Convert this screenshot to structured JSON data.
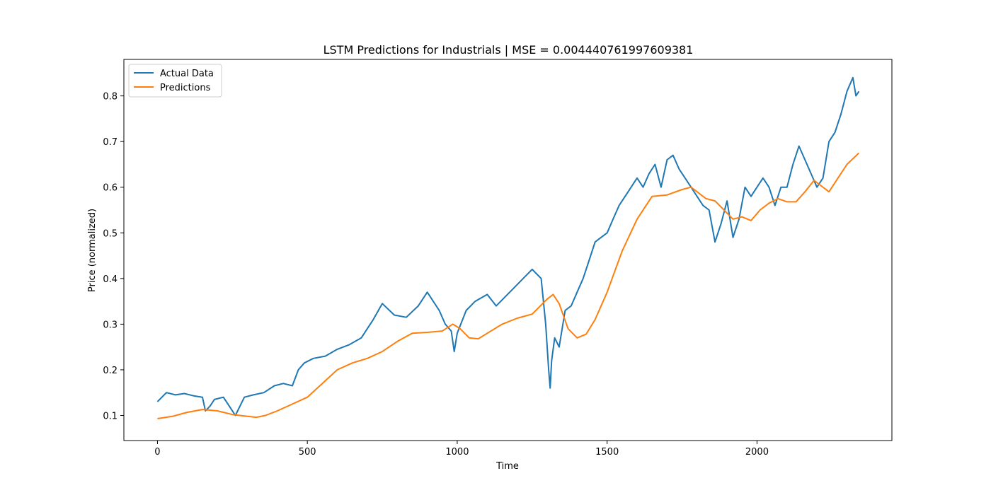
{
  "chart_data": {
    "type": "line",
    "title": "LSTM Predictions for Industrials | MSE = 0.004440761997609381",
    "xlabel": "Time",
    "ylabel": "Price (normalized)",
    "xlim": [
      -112,
      2450
    ],
    "ylim": [
      0.045,
      0.88
    ],
    "xticks": [
      0,
      500,
      1000,
      1500,
      2000
    ],
    "yticks": [
      0.1,
      0.2,
      0.3,
      0.4,
      0.5,
      0.6,
      0.7,
      0.8
    ],
    "ytick_labels": [
      "0.1",
      "0.2",
      "0.3",
      "0.4",
      "0.5",
      "0.6",
      "0.7",
      "0.8"
    ],
    "grid": false,
    "legend_position": "top-left",
    "series": [
      {
        "name": "Actual Data",
        "color": "#1f77b4",
        "x": [
          0,
          30,
          60,
          90,
          120,
          150,
          160,
          175,
          190,
          220,
          245,
          260,
          275,
          290,
          320,
          355,
          390,
          420,
          450,
          470,
          490,
          520,
          560,
          600,
          640,
          680,
          720,
          750,
          790,
          830,
          870,
          900,
          940,
          960,
          980,
          990,
          1000,
          1030,
          1060,
          1100,
          1130,
          1160,
          1190,
          1220,
          1250,
          1280,
          1295,
          1305,
          1310,
          1315,
          1325,
          1340,
          1360,
          1380,
          1400,
          1420,
          1440,
          1460,
          1480,
          1500,
          1520,
          1540,
          1560,
          1580,
          1600,
          1620,
          1640,
          1660,
          1680,
          1700,
          1720,
          1740,
          1760,
          1780,
          1800,
          1820,
          1840,
          1860,
          1880,
          1900,
          1920,
          1940,
          1960,
          1980,
          2000,
          2020,
          2040,
          2060,
          2080,
          2100,
          2120,
          2140,
          2160,
          2180,
          2200,
          2220,
          2240,
          2260,
          2280,
          2300,
          2320,
          2330,
          2340
        ],
        "y": [
          0.13,
          0.15,
          0.145,
          0.148,
          0.143,
          0.14,
          0.11,
          0.12,
          0.135,
          0.14,
          0.115,
          0.1,
          0.12,
          0.14,
          0.145,
          0.15,
          0.165,
          0.17,
          0.165,
          0.2,
          0.215,
          0.225,
          0.23,
          0.245,
          0.255,
          0.27,
          0.31,
          0.345,
          0.32,
          0.315,
          0.34,
          0.37,
          0.33,
          0.3,
          0.285,
          0.24,
          0.28,
          0.33,
          0.35,
          0.365,
          0.34,
          0.36,
          0.38,
          0.4,
          0.42,
          0.4,
          0.3,
          0.2,
          0.16,
          0.22,
          0.27,
          0.25,
          0.33,
          0.34,
          0.37,
          0.4,
          0.44,
          0.48,
          0.49,
          0.5,
          0.53,
          0.56,
          0.58,
          0.6,
          0.62,
          0.6,
          0.63,
          0.65,
          0.6,
          0.66,
          0.67,
          0.64,
          0.62,
          0.6,
          0.58,
          0.56,
          0.55,
          0.48,
          0.52,
          0.57,
          0.49,
          0.53,
          0.6,
          0.58,
          0.6,
          0.62,
          0.6,
          0.56,
          0.6,
          0.6,
          0.65,
          0.69,
          0.66,
          0.63,
          0.6,
          0.62,
          0.7,
          0.72,
          0.76,
          0.81,
          0.84,
          0.8,
          0.81
        ]
      },
      {
        "name": "Predictions",
        "color": "#ff7f0e",
        "x": [
          0,
          50,
          100,
          150,
          200,
          250,
          300,
          330,
          360,
          400,
          450,
          500,
          550,
          600,
          650,
          700,
          750,
          800,
          850,
          900,
          950,
          985,
          1010,
          1040,
          1070,
          1100,
          1150,
          1200,
          1250,
          1300,
          1320,
          1340,
          1370,
          1400,
          1430,
          1460,
          1500,
          1550,
          1600,
          1650,
          1700,
          1750,
          1780,
          1800,
          1830,
          1860,
          1890,
          1920,
          1950,
          1980,
          2010,
          2040,
          2070,
          2100,
          2130,
          2160,
          2190,
          2210,
          2240,
          2270,
          2300,
          2340
        ],
        "y": [
          0.093,
          0.098,
          0.107,
          0.113,
          0.11,
          0.102,
          0.098,
          0.096,
          0.1,
          0.11,
          0.125,
          0.14,
          0.17,
          0.2,
          0.215,
          0.225,
          0.24,
          0.262,
          0.28,
          0.282,
          0.285,
          0.3,
          0.29,
          0.27,
          0.268,
          0.28,
          0.3,
          0.313,
          0.322,
          0.355,
          0.365,
          0.345,
          0.29,
          0.27,
          0.278,
          0.31,
          0.37,
          0.46,
          0.53,
          0.58,
          0.583,
          0.595,
          0.6,
          0.59,
          0.575,
          0.57,
          0.55,
          0.53,
          0.535,
          0.527,
          0.55,
          0.565,
          0.575,
          0.568,
          0.568,
          0.59,
          0.615,
          0.605,
          0.59,
          0.62,
          0.65,
          0.675
        ]
      }
    ]
  }
}
